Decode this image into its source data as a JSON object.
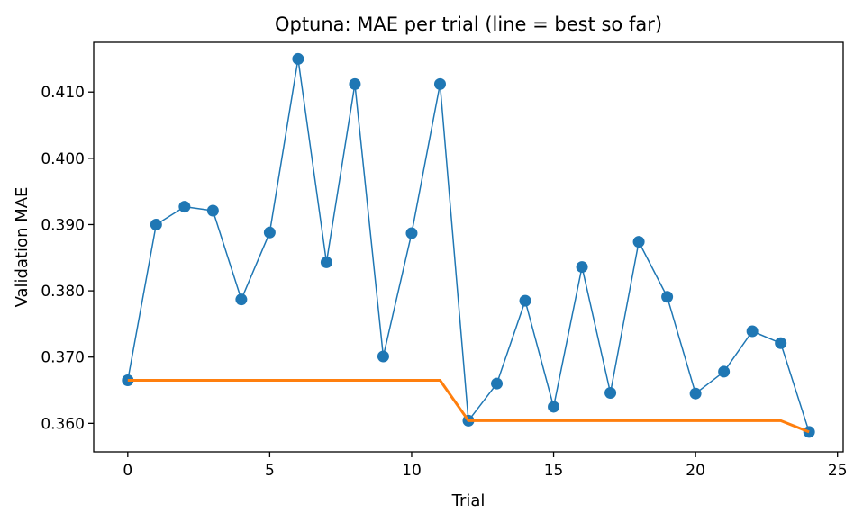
{
  "chart_data": {
    "type": "line",
    "title": "Optuna: MAE per trial (line = best so far)",
    "xlabel": "Trial",
    "ylabel": "Validation MAE",
    "xlim": [
      -1.2,
      25.2
    ],
    "ylim": [
      0.3557,
      0.4175
    ],
    "xticks": [
      0,
      5,
      10,
      15,
      20,
      25
    ],
    "yticks": [
      0.36,
      0.37,
      0.38,
      0.39,
      0.4,
      0.41
    ],
    "ytick_labels": [
      "0.360",
      "0.370",
      "0.380",
      "0.390",
      "0.400",
      "0.410"
    ],
    "grid": false,
    "legend": "none",
    "series": [
      {
        "color": "#1f77b4",
        "style": "line-with-markers",
        "x": [
          0,
          1,
          2,
          3,
          4,
          5,
          6,
          7,
          8,
          9,
          10,
          11,
          12,
          13,
          14,
          15,
          16,
          17,
          18,
          19,
          20,
          21,
          22,
          23,
          24
        ],
        "values": [
          0.3665,
          0.39,
          0.3927,
          0.3921,
          0.3787,
          0.3888,
          0.415,
          0.3843,
          0.4112,
          0.3701,
          0.3887,
          0.4112,
          0.3604,
          0.366,
          0.3785,
          0.3625,
          0.3836,
          0.3646,
          0.3874,
          0.3791,
          0.3645,
          0.3678,
          0.3739,
          0.3721,
          0.3587
        ]
      },
      {
        "color": "#ff7f0e",
        "style": "line",
        "x": [
          0,
          1,
          2,
          3,
          4,
          5,
          6,
          7,
          8,
          9,
          10,
          11,
          12,
          13,
          14,
          15,
          16,
          17,
          18,
          19,
          20,
          21,
          22,
          23,
          24
        ],
        "values": [
          0.3665,
          0.3665,
          0.3665,
          0.3665,
          0.3665,
          0.3665,
          0.3665,
          0.3665,
          0.3665,
          0.3665,
          0.3665,
          0.3665,
          0.3604,
          0.3604,
          0.3604,
          0.3604,
          0.3604,
          0.3604,
          0.3604,
          0.3604,
          0.3604,
          0.3604,
          0.3604,
          0.3604,
          0.3587
        ]
      }
    ]
  }
}
